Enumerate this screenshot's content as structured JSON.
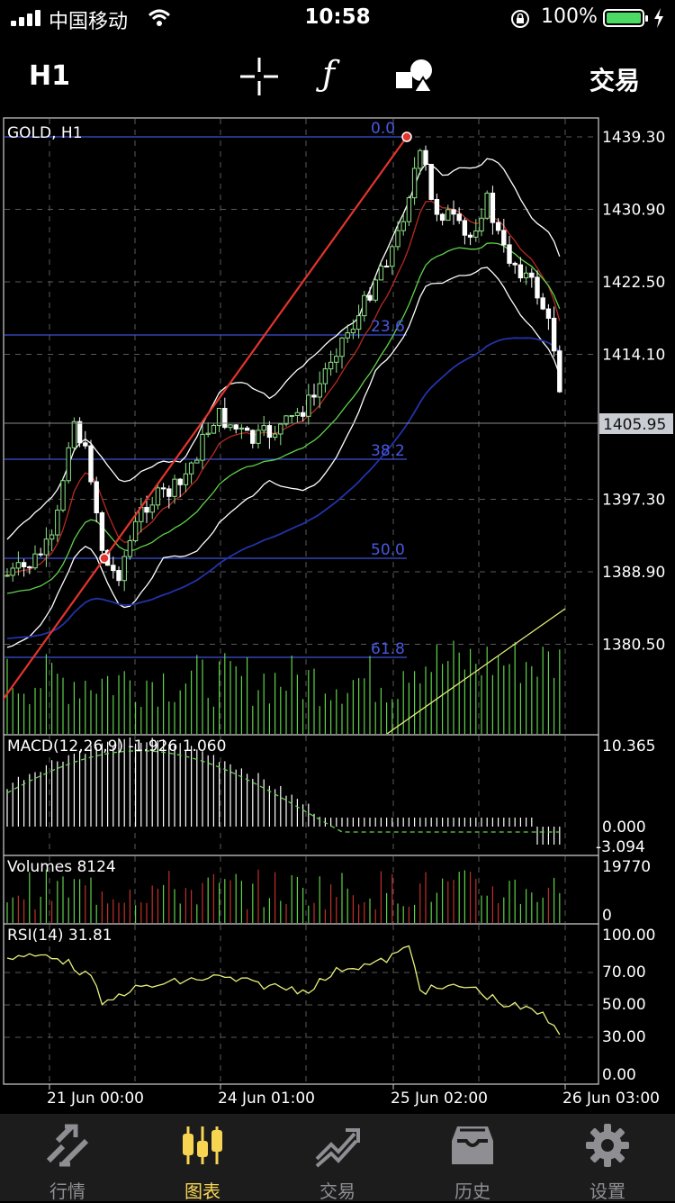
{
  "status_bar": {
    "carrier": "中国移动",
    "time": "10:58",
    "battery": "100%"
  },
  "toolbar": {
    "timeframe": "H1",
    "function_label": "ƒ",
    "trade_label": "交易"
  },
  "chart": {
    "symbol_label": "GOLD, H1",
    "price_axis": [
      "1439.30",
      "1430.90",
      "1422.50",
      "1414.10",
      "1405.95",
      "1397.30",
      "1388.90",
      "1380.50"
    ],
    "current_price": "1405.95",
    "fibonacci_levels": [
      "0.0",
      "23.6",
      "38.2",
      "50.0",
      "61.8"
    ],
    "macd": {
      "label": "MACD(12,26,9) -1.926 1.060",
      "axis": [
        "10.365",
        "0.000",
        "-3.094"
      ]
    },
    "volumes": {
      "label": "Volumes 8124",
      "axis": [
        "19770",
        "0"
      ]
    },
    "rsi": {
      "label": "RSI(14) 31.81",
      "axis": [
        "100.00",
        "70.00",
        "50.00",
        "30.00",
        "0.00"
      ]
    },
    "time_axis": [
      "21 Jun 00:00",
      "24 Jun 01:00",
      "25 Jun 02:00",
      "26 Jun 03:00"
    ]
  },
  "tabs": [
    {
      "label": "行情",
      "icon": "quotes-icon",
      "active": false
    },
    {
      "label": "图表",
      "icon": "chart-candles-icon",
      "active": true
    },
    {
      "label": "交易",
      "icon": "trade-icon",
      "active": false
    },
    {
      "label": "历史",
      "icon": "history-icon",
      "active": false
    },
    {
      "label": "设置",
      "icon": "gear-icon",
      "active": false
    }
  ],
  "colors": {
    "bull": "#8fe388",
    "bear": "#ffffff",
    "fib_line": "#3d52d8",
    "trend_line": "#e3352b",
    "active_tab": "#f7d553",
    "grid": "#5a5a5a"
  }
}
